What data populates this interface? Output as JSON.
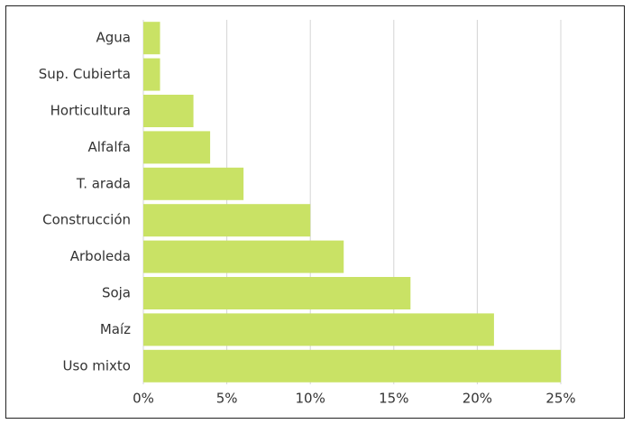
{
  "chart_data": {
    "type": "bar",
    "orientation": "horizontal",
    "categories": [
      "Agua",
      "Sup. Cubierta",
      "Horticultura",
      "Alfalfa",
      "T. arada",
      "Construcción",
      "Arboleda",
      "Soja",
      "Maíz",
      "Uso mixto"
    ],
    "values": [
      1,
      1,
      3,
      4,
      6,
      10,
      12,
      16,
      21,
      25
    ],
    "color": "#c9e265",
    "xlim": [
      0,
      25
    ],
    "xticks": [
      {
        "value": 0,
        "label": "0%"
      },
      {
        "value": 5,
        "label": "5%"
      },
      {
        "value": 10,
        "label": "10%"
      },
      {
        "value": 15,
        "label": "15%"
      },
      {
        "value": 20,
        "label": "20%"
      },
      {
        "value": 25,
        "label": "25%"
      }
    ],
    "grid": true
  }
}
